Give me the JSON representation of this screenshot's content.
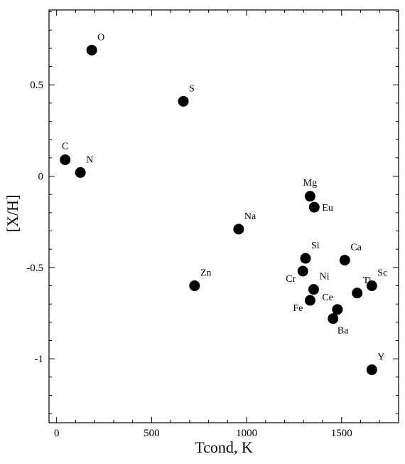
{
  "chart_data": {
    "type": "scatter",
    "title": "",
    "xlabel": "Tcond, K",
    "ylabel": "[X/H]",
    "xlim": [
      -40,
      1800
    ],
    "ylim": [
      -1.35,
      0.91
    ],
    "xticks": [
      0,
      500,
      1000,
      1500
    ],
    "xtick_labels": [
      "0",
      "500",
      "1000",
      "1500"
    ],
    "yticks": [
      0.5,
      0,
      -0.5,
      -1
    ],
    "ytick_labels": [
      "0.5",
      "0",
      "-0.5",
      "-1"
    ],
    "grid": false,
    "legend": "none",
    "marker_color": "#000000",
    "points": [
      {
        "label": "O",
        "x": 185,
        "y": 0.69,
        "label_pos": "above-right"
      },
      {
        "label": "S",
        "x": 667,
        "y": 0.41,
        "label_pos": "above-right"
      },
      {
        "label": "C",
        "x": 45,
        "y": 0.09,
        "label_pos": "above"
      },
      {
        "label": "N",
        "x": 125,
        "y": 0.02,
        "label_pos": "above-right"
      },
      {
        "label": "Mg",
        "x": 1334,
        "y": -0.11,
        "label_pos": "above"
      },
      {
        "label": "Eu",
        "x": 1356,
        "y": -0.17,
        "label_pos": "right"
      },
      {
        "label": "Na",
        "x": 958,
        "y": -0.29,
        "label_pos": "above-right"
      },
      {
        "label": "Si",
        "x": 1310,
        "y": -0.45,
        "label_pos": "above-right"
      },
      {
        "label": "Ca",
        "x": 1517,
        "y": -0.46,
        "label_pos": "above-right"
      },
      {
        "label": "Cr",
        "x": 1296,
        "y": -0.52,
        "label_pos": "below-left"
      },
      {
        "label": "Zn",
        "x": 726,
        "y": -0.6,
        "label_pos": "above-right"
      },
      {
        "label": "Ni",
        "x": 1353,
        "y": -0.62,
        "label_pos": "above-right"
      },
      {
        "label": "Ti",
        "x": 1582,
        "y": -0.64,
        "label_pos": "above-right"
      },
      {
        "label": "Sc",
        "x": 1659,
        "y": -0.6,
        "label_pos": "above-right"
      },
      {
        "label": "Fe",
        "x": 1334,
        "y": -0.68,
        "label_pos": "below-left"
      },
      {
        "label": "Ce",
        "x": 1478,
        "y": -0.73,
        "label_pos": "above-left"
      },
      {
        "label": "Ba",
        "x": 1455,
        "y": -0.78,
        "label_pos": "below-right"
      },
      {
        "label": "Y",
        "x": 1659,
        "y": -1.06,
        "label_pos": "above-right"
      }
    ]
  }
}
